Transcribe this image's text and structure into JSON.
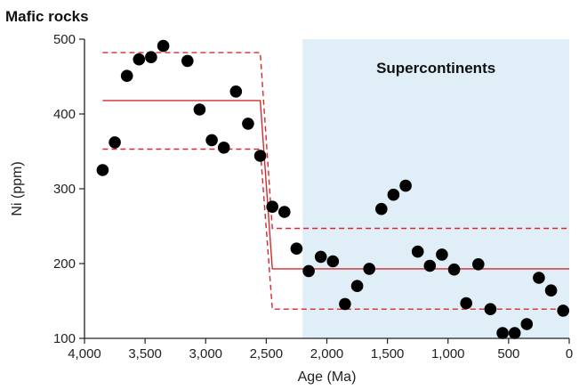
{
  "chart_data": {
    "type": "scatter",
    "title": "Mafic rocks",
    "xlabel": "Age (Ma)",
    "ylabel": "Ni (ppm)",
    "xlim": [
      4000,
      0
    ],
    "ylim": [
      100,
      500
    ],
    "x_reversed": true,
    "xticks": [
      4000,
      3500,
      3000,
      2500,
      2000,
      1500,
      1000,
      500,
      0
    ],
    "xtick_labels": [
      "4,000",
      "3,500",
      "3,000",
      "2,500",
      "2,000",
      "1,500",
      "1,000",
      "500",
      "0"
    ],
    "yticks": [
      100,
      200,
      300,
      400,
      500
    ],
    "ytick_labels": [
      "100",
      "200",
      "300",
      "400",
      "500"
    ],
    "grid": false,
    "shaded_region": {
      "label": "Supercontinents",
      "x_from": 2200,
      "x_to": 0,
      "color": "#dfeef7"
    },
    "points": [
      {
        "x": 3850,
        "y": 325
      },
      {
        "x": 3750,
        "y": 362
      },
      {
        "x": 3650,
        "y": 451
      },
      {
        "x": 3550,
        "y": 473
      },
      {
        "x": 3450,
        "y": 476
      },
      {
        "x": 3350,
        "y": 491
      },
      {
        "x": 3150,
        "y": 471
      },
      {
        "x": 3050,
        "y": 406
      },
      {
        "x": 2950,
        "y": 365
      },
      {
        "x": 2850,
        "y": 355
      },
      {
        "x": 2750,
        "y": 430
      },
      {
        "x": 2650,
        "y": 387
      },
      {
        "x": 2550,
        "y": 344
      },
      {
        "x": 2450,
        "y": 276
      },
      {
        "x": 2350,
        "y": 269
      },
      {
        "x": 2250,
        "y": 220
      },
      {
        "x": 2150,
        "y": 190
      },
      {
        "x": 2050,
        "y": 209
      },
      {
        "x": 1950,
        "y": 203
      },
      {
        "x": 1850,
        "y": 146
      },
      {
        "x": 1750,
        "y": 170
      },
      {
        "x": 1650,
        "y": 193
      },
      {
        "x": 1550,
        "y": 273
      },
      {
        "x": 1450,
        "y": 292
      },
      {
        "x": 1350,
        "y": 304
      },
      {
        "x": 1250,
        "y": 216
      },
      {
        "x": 1150,
        "y": 197
      },
      {
        "x": 1050,
        "y": 212
      },
      {
        "x": 950,
        "y": 192
      },
      {
        "x": 850,
        "y": 147
      },
      {
        "x": 750,
        "y": 199
      },
      {
        "x": 650,
        "y": 139
      },
      {
        "x": 550,
        "y": 107
      },
      {
        "x": 450,
        "y": 107
      },
      {
        "x": 350,
        "y": 119
      },
      {
        "x": 250,
        "y": 181
      },
      {
        "x": 150,
        "y": 164
      },
      {
        "x": 50,
        "y": 137
      }
    ],
    "mean_line": [
      {
        "x": 3850,
        "y": 418
      },
      {
        "x": 2550,
        "y": 418
      },
      {
        "x": 2450,
        "y": 193
      },
      {
        "x": 0,
        "y": 193
      }
    ],
    "upper_bound_line": [
      {
        "x": 3850,
        "y": 482
      },
      {
        "x": 2550,
        "y": 482
      },
      {
        "x": 2450,
        "y": 247
      },
      {
        "x": 0,
        "y": 247
      }
    ],
    "lower_bound_line": [
      {
        "x": 3850,
        "y": 353
      },
      {
        "x": 2550,
        "y": 353
      },
      {
        "x": 2450,
        "y": 139
      },
      {
        "x": 0,
        "y": 139
      }
    ],
    "colors": {
      "points": "#000000",
      "lines": "#d42a2f",
      "shade": "#dfeef7",
      "axis": "#222222"
    }
  }
}
